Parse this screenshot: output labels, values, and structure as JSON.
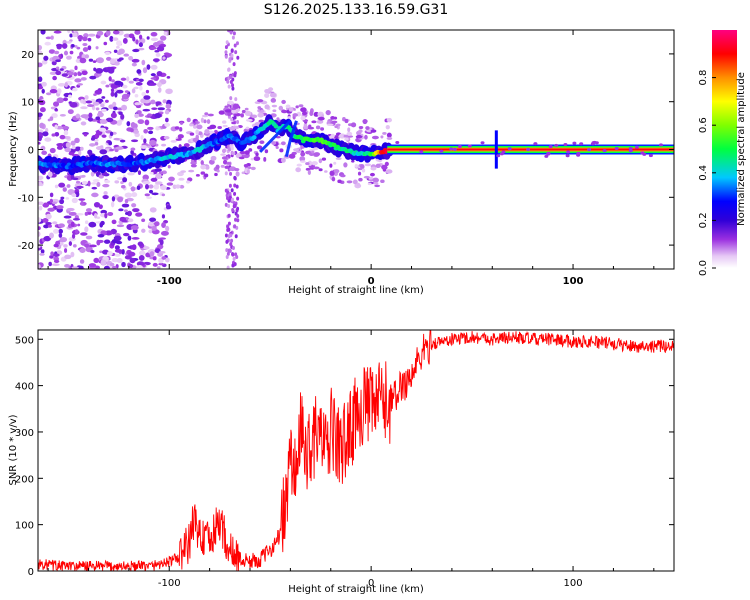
{
  "figure": {
    "title": "S126.2025.133.16.59.G31"
  },
  "chart_data": [
    {
      "type": "heatmap",
      "xlabel": "Height of straight line (km)",
      "ylabel": "Frequency (Hz)",
      "xlim": [
        -165,
        150
      ],
      "ylim": [
        -25,
        25
      ],
      "x_ticks": [
        -100,
        0,
        100
      ],
      "x_tick_labels": [
        "-100",
        "0",
        "100"
      ],
      "y_ticks": [
        -20,
        -10,
        0,
        10,
        20
      ],
      "y_tick_labels": [
        "-20",
        "-10",
        "0",
        "10",
        "20"
      ],
      "colorbar": {
        "label": "Normalized spectral amplitude",
        "range": [
          0,
          1
        ],
        "ticks": [
          0.0,
          0.2,
          0.4,
          0.6,
          0.8
        ],
        "tick_labels": [
          "0.0",
          "0.2",
          "0.4",
          "0.6",
          "0.8"
        ],
        "colormap": [
          "#ffffff",
          "#e6c8f5",
          "#9b30e0",
          "#5a00c8",
          "#0000ff",
          "#00c8ff",
          "#00ff60",
          "#80ff00",
          "#ffff00",
          "#ff8000",
          "#ff0000",
          "#ff0080"
        ]
      },
      "ridge": {
        "description": "dominant frequency vs height",
        "x": [
          -165,
          -150,
          -140,
          -130,
          -120,
          -110,
          -100,
          -92,
          -85,
          -80,
          -75,
          -70,
          -65,
          -60,
          -55,
          -50,
          -46,
          -42,
          -38,
          -34,
          -30,
          -25,
          -20,
          -15,
          -10,
          -5,
          0,
          5,
          10,
          150
        ],
        "y": [
          -3,
          -3.5,
          -3,
          -3,
          -3,
          -2.5,
          -1.5,
          -1,
          0,
          1,
          2,
          3,
          1.5,
          2,
          4,
          6,
          4,
          5,
          3,
          2,
          2,
          2,
          1,
          0,
          -0.5,
          -1,
          -1,
          -0.5,
          0,
          0
        ],
        "amplitude": [
          0.35,
          0.3,
          0.3,
          0.35,
          0.3,
          0.35,
          0.4,
          0.35,
          0.4,
          0.35,
          0.3,
          0.35,
          0.3,
          0.35,
          0.4,
          0.45,
          0.4,
          0.45,
          0.45,
          0.5,
          0.55,
          0.55,
          0.5,
          0.45,
          0.45,
          0.4,
          0.5,
          0.9,
          0.98,
          0.98
        ]
      },
      "lines": [
        {
          "x": [
            -42,
            -40,
            -37
          ],
          "y": [
            -1.5,
            2,
            6
          ]
        },
        {
          "x": [
            -55,
            -40
          ],
          "y": [
            -0.5,
            6
          ]
        }
      ],
      "spike_at_x": 62
    },
    {
      "type": "line",
      "xlabel": "Height of straight line (km)",
      "ylabel": "SNR (10 * v/v)",
      "xlim": [
        -165,
        150
      ],
      "ylim": [
        0,
        520
      ],
      "x_ticks": [
        -100,
        0,
        100
      ],
      "x_tick_labels": [
        "-100",
        "0",
        "100"
      ],
      "y_ticks": [
        0,
        100,
        200,
        300,
        400,
        500
      ],
      "y_tick_labels": [
        "0",
        "100",
        "200",
        "300",
        "400",
        "500"
      ],
      "color": "#ff0000",
      "series": [
        {
          "x": [
            -165,
            -150,
            -130,
            -110,
            -100,
            -95,
            -90,
            -88,
            -85,
            -80,
            -75,
            -70,
            -65,
            -60,
            -55,
            -50,
            -45,
            -42,
            -40,
            -38,
            -35,
            -32,
            -30,
            -25,
            -22,
            -20,
            -15,
            -10,
            -5,
            0,
            5,
            10,
            15,
            20,
            25,
            30,
            40,
            50,
            60,
            70,
            80,
            90,
            100,
            110,
            120,
            130,
            140,
            150
          ],
          "y": [
            15,
            10,
            10,
            10,
            20,
            30,
            60,
            110,
            80,
            60,
            110,
            40,
            25,
            20,
            25,
            45,
            80,
            150,
            250,
            200,
            300,
            250,
            280,
            300,
            240,
            310,
            260,
            310,
            360,
            350,
            370,
            360,
            400,
            420,
            470,
            490,
            500,
            505,
            500,
            505,
            500,
            500,
            495,
            495,
            490,
            485,
            485,
            485
          ]
        }
      ]
    }
  ]
}
